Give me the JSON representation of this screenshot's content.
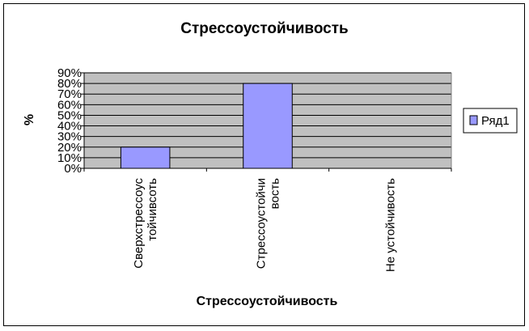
{
  "chart_data": {
    "type": "bar",
    "title": "Стрессоустойчивость",
    "xlabel": "Стрессоустойчивость",
    "ylabel": "%",
    "categories": [
      [
        "Сверхстрессоус",
        "тойчивсоть"
      ],
      [
        "Стрессоустойчи",
        "вость"
      ],
      [
        "Не устойчивость"
      ]
    ],
    "series": [
      {
        "name": "Ряд1",
        "values": [
          20,
          80,
          0
        ],
        "color": "#9999ff"
      }
    ],
    "ylim": [
      0,
      90
    ],
    "yticks": [
      "0%",
      "10%",
      "20%",
      "30%",
      "40%",
      "50%",
      "60%",
      "70%",
      "80%",
      "90%"
    ],
    "grid": true,
    "plot_background": "#c0c0c0",
    "legend_position": "right"
  }
}
